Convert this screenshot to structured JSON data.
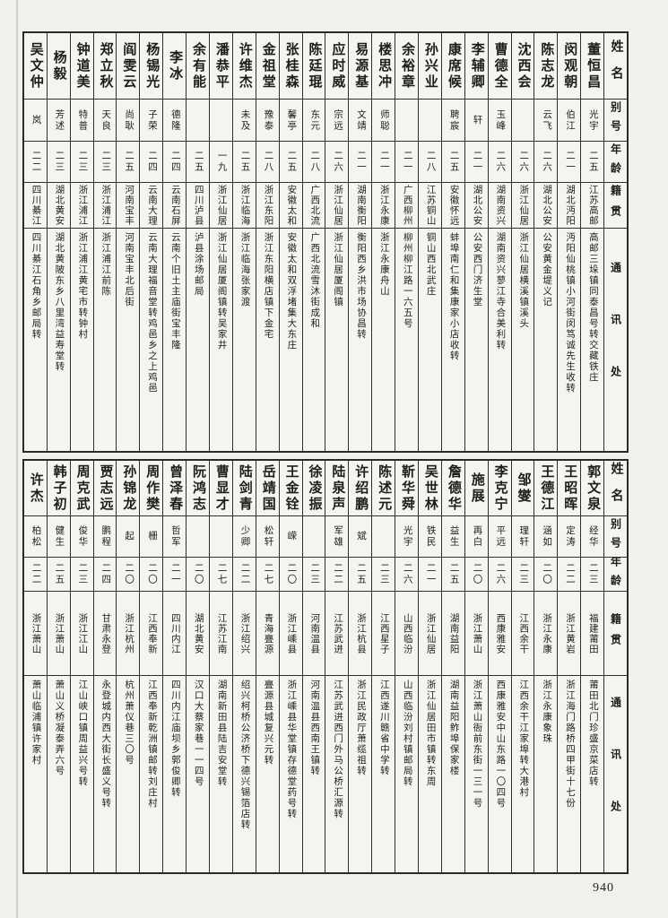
{
  "page": {
    "number": "940"
  },
  "headers": {
    "name": "姓名",
    "hao": "别号",
    "age": "年龄",
    "native": "籍贯",
    "address": "通讯处"
  },
  "sections": [
    {
      "entries": [
        {
          "name": "董恒昌",
          "hao": "光宇",
          "age": "二五",
          "native": "江苏高邮",
          "address": "高邮三垛镇同泰昌号转交藏铁庄"
        },
        {
          "name": "闵观朝",
          "hao": "伯江",
          "age": "二一",
          "native": "湖北沔阳",
          "address": "沔阳仙桃镇小河街闵笃诚先生收转"
        },
        {
          "name": "陈志龙",
          "hao": "云飞",
          "age": "二六",
          "native": "湖北公安",
          "address": "公安黄金堤义记"
        },
        {
          "name": "沈西会",
          "hao": "",
          "age": "二六",
          "native": "浙江仙居",
          "address": "浙江仙居横溪镇溪头"
        },
        {
          "name": "曹德全",
          "hao": "玉峰",
          "age": "二六",
          "native": "湖南资兴",
          "address": "湖南资兴蓼江寺合美利转"
        },
        {
          "name": "李辅卿",
          "hao": "轩",
          "age": "二一",
          "native": "湖北公安",
          "address": "公安西门济生堂"
        },
        {
          "name": "康席候",
          "hao": "聘宸",
          "age": "二五",
          "native": "安徽怀远",
          "address": "蚌埠南仁和集康家小店收转"
        },
        {
          "name": "孙兴业",
          "hao": "",
          "age": "二八",
          "native": "江苏铜山",
          "address": "铜山西北武庄"
        },
        {
          "name": "余裕章",
          "hao": "",
          "age": "二一",
          "native": "广西柳州",
          "address": "柳州柳江路一六五号"
        },
        {
          "name": "楼思冲",
          "hao": "师聪",
          "age": "二一",
          "native": "浙江永康",
          "address": "浙江永康舟山"
        },
        {
          "name": "易源基",
          "hao": "文靖",
          "age": "二一",
          "native": "湖南衡阳",
          "address": "衡阳西乡洪市场协昌转"
        },
        {
          "name": "应时威",
          "hao": "宗远",
          "age": "二六",
          "native": "浙江仙居",
          "address": "浙江仙居厦阁镇"
        },
        {
          "name": "陈廷琨",
          "hao": "东元",
          "age": "二八",
          "native": "广西北流",
          "address": "广西北流雪沐街成和"
        },
        {
          "name": "张桂森",
          "hao": "馨亭",
          "age": "二五",
          "native": "安徽太和",
          "address": "安徽太和双浮堵集大东庄"
        },
        {
          "name": "金祖堂",
          "hao": "豫泰",
          "age": "二八",
          "native": "浙江东阳",
          "address": "浙江东阳横店镇下金宅"
        },
        {
          "name": "许维杰",
          "hao": "未及",
          "age": "二五",
          "native": "浙江临海",
          "address": "浙江临海张家渡"
        },
        {
          "name": "潘恭平",
          "hao": "",
          "age": "一九",
          "native": "浙江仙居",
          "address": "浙江仙居厦阁镇转吴家井"
        },
        {
          "name": "余有能",
          "hao": "",
          "age": "二五",
          "native": "四川泸县",
          "address": "泸县涂场邮局"
        },
        {
          "name": "李冰",
          "hao": "德隆",
          "age": "二四",
          "native": "云南石屏",
          "address": "云南个旧土主庙街宝丰隆"
        },
        {
          "name": "杨锡光",
          "hao": "子荣",
          "age": "二四",
          "native": "云南大理",
          "address": "云南大理福音堂转鸡邑乡之上鸡邑"
        },
        {
          "name": "阎雯云",
          "hao": "尚耿",
          "age": "二五",
          "native": "河南宝丰",
          "address": "河南宝丰北后街"
        },
        {
          "name": "郑立秋",
          "hao": "天良",
          "age": "二三",
          "native": "浙江浦江",
          "address": "浙江浦江前陈"
        },
        {
          "name": "钟道美",
          "hao": "特普",
          "age": "二三",
          "native": "浙江浦江",
          "address": "浙江浦江黄宅市转钟村"
        },
        {
          "name": "杨毅",
          "hao": "芳述",
          "age": "二三",
          "native": "湖北黄安",
          "address": "湖北黄陂东乡八里湾益寿堂转"
        },
        {
          "name": "吴文仲",
          "hao": "岚",
          "age": "二二",
          "native": "四川綦江",
          "address": "四川綦江石角乡邮局转"
        }
      ]
    },
    {
      "entries": [
        {
          "name": "郭文泉",
          "hao": "经华",
          "age": "二三",
          "native": "福建莆田",
          "address": "莆田北门珍盛京菜店转"
        },
        {
          "name": "王昭晖",
          "hao": "定涛",
          "age": "二二",
          "native": "浙江黄岩",
          "address": "浙江海门路桥四甲街十七份"
        },
        {
          "name": "王德江",
          "hao": "涵如",
          "age": "二〇",
          "native": "浙江永康",
          "address": "浙江永康象珠"
        },
        {
          "name": "邹燮",
          "hao": "理轩",
          "age": "二三",
          "native": "江西余干",
          "address": "江西余干江家埠转大港村"
        },
        {
          "name": "李克宁",
          "hao": "平远",
          "age": "二六",
          "native": "西康雅安",
          "address": "西康雅安中山东路一〇四号"
        },
        {
          "name": "施展",
          "hao": "再白",
          "age": "二〇",
          "native": "浙江萧山",
          "address": "浙江萧山衙前东街一三一号"
        },
        {
          "name": "詹德华",
          "hao": "益生",
          "age": "二五",
          "native": "湖南益阳",
          "address": "湖南益阳鲊埠保家楼"
        },
        {
          "name": "吴世林",
          "hao": "铁民",
          "age": "二一",
          "native": "浙江仙居",
          "address": "浙江仙居田市镇转东周"
        },
        {
          "name": "靳华舜",
          "hao": "光宇",
          "age": "二六",
          "native": "山西临汾",
          "address": "山西临汾刘村镇邮局转"
        },
        {
          "name": "陈述元",
          "hao": "",
          "age": "二三",
          "native": "江西星子",
          "address": "江西遂川赣省中学转"
        },
        {
          "name": "许绍鹏",
          "hao": "斌",
          "age": "二五",
          "native": "浙江杭县",
          "address": "浙江民政厅萧缆祖转"
        },
        {
          "name": "陆泉声",
          "hao": "军雄",
          "age": "二二",
          "native": "江苏武进",
          "address": "江苏武进西门外马公桥汇源转"
        },
        {
          "name": "徐凌振",
          "hao": "",
          "age": "二三",
          "native": "河南温县",
          "address": "河南温县西南王镇转"
        },
        {
          "name": "王金铨",
          "hao": "嵘",
          "age": "二〇",
          "native": "浙江嵊县",
          "address": "浙江嵊县华堂镇存德堂药号转"
        },
        {
          "name": "岳靖国",
          "hao": "松轩",
          "age": "二七",
          "native": "青海亹源",
          "address": "亹源县城复兴元转"
        },
        {
          "name": "陆剑青",
          "hao": "少卿",
          "age": "二二",
          "native": "浙江绍兴",
          "address": "绍兴柯桥公济桥下德兴锡箔店转"
        },
        {
          "name": "曹显才",
          "hao": "",
          "age": "二七",
          "native": "江苏江南",
          "address": "湖南新田县陆吉安堂转"
        },
        {
          "name": "阮鸿志",
          "hao": "",
          "age": "二〇",
          "native": "湖北黄安",
          "address": "汉口大蔡家巷一一四号"
        },
        {
          "name": "曾泽春",
          "hao": "哲军",
          "age": "二一",
          "native": "四川内江",
          "address": "四川内江庙坝乡郭俊卿转"
        },
        {
          "name": "周作樊",
          "hao": "栅",
          "age": "二〇",
          "native": "江西奉新",
          "address": "江西奉新乾洲镇邮转刘庄村"
        },
        {
          "name": "孙锦龙",
          "hao": "起",
          "age": "二〇",
          "native": "浙江杭州",
          "address": "杭州萧仪巷三〇号"
        },
        {
          "name": "贾志远",
          "hao": "鹏程",
          "age": "二四",
          "native": "甘肃永登",
          "address": "永登城内西大街长盛义号转"
        },
        {
          "name": "周克武",
          "hao": "俊华",
          "age": "二三",
          "native": "浙江江山",
          "address": "江山峡口镇周益兴号转"
        },
        {
          "name": "韩子初",
          "hao": "健生",
          "age": "二五",
          "native": "浙江萧山",
          "address": "萧山义桥凝泰弄六号"
        },
        {
          "name": "许杰",
          "hao": "柏松",
          "age": "二二",
          "native": "浙江萧山",
          "address": "萧山临浦镇许家村"
        }
      ]
    }
  ]
}
